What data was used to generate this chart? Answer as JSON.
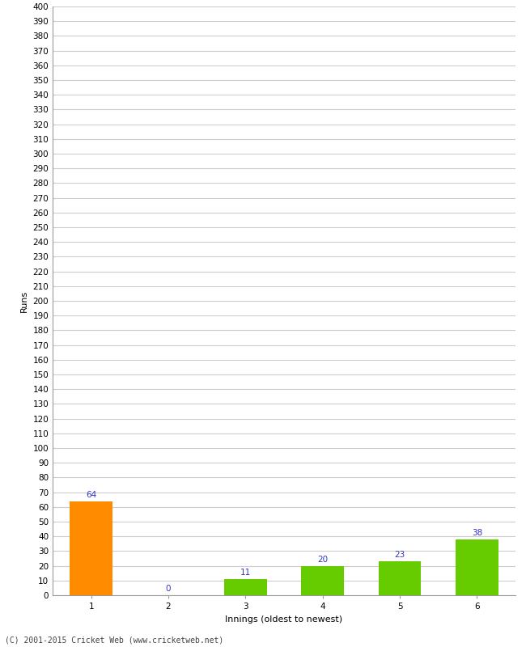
{
  "categories": [
    "1",
    "2",
    "3",
    "4",
    "5",
    "6"
  ],
  "values": [
    64,
    0,
    11,
    20,
    23,
    38
  ],
  "bar_colors": [
    "#FF8C00",
    "#66CC00",
    "#66CC00",
    "#66CC00",
    "#66CC00",
    "#66CC00"
  ],
  "xlabel": "Innings (oldest to newest)",
  "ylabel": "Runs",
  "ylim": [
    0,
    400
  ],
  "ytick_step": 10,
  "label_color": "#3333CC",
  "label_fontsize": 7.5,
  "axis_fontsize": 8,
  "tick_fontsize": 7.5,
  "grid_color": "#CCCCCC",
  "background_color": "#FFFFFF",
  "footer": "(C) 2001-2015 Cricket Web (www.cricketweb.net)"
}
